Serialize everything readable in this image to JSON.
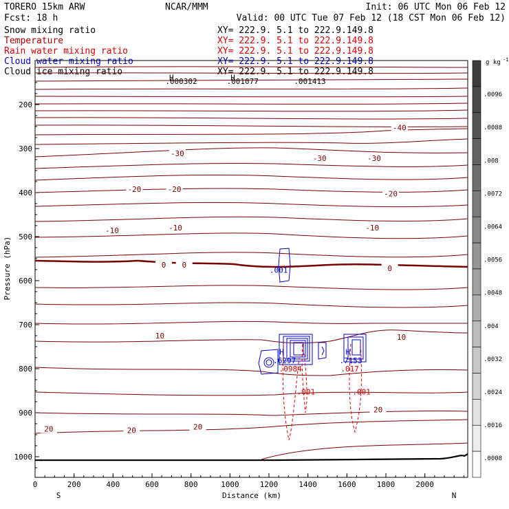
{
  "header": {
    "line1_left": "TORERO  15km ARW",
    "line1_center": "NCAR/MMM",
    "line1_right": "Init: 06 UTC Mon 06 Feb 12",
    "line2_left": "Fcst:   18 h",
    "line2_right": "Valid: 00 UTC Tue 07 Feb 12 (18 CST Mon 06 Feb 12)"
  },
  "legend": [
    {
      "name": "Snow mixing ratio",
      "xy": "XY= 222.9.   5.1 to 222.9.149.8",
      "color": "#000000"
    },
    {
      "name": "Temperature",
      "xy": "XY= 222.9.   5.1 to 222.9.149.8",
      "color": "#aa0000"
    },
    {
      "name": "Rain water mixing ratio",
      "xy": "XY= 222.9.   5.1 to 222.9.149.8",
      "color": "#dd0000"
    },
    {
      "name": "Cloud water mixing ratio",
      "xy": "XY= 222.9.   5.1 to 222.9.149.8",
      "color": "#0000cc"
    },
    {
      "name": "Cloud ice mixing ratio",
      "xy": "XY= 222.9.   5.1 to 222.9.149.8",
      "color": "#000000"
    }
  ],
  "chart_data": {
    "type": "contour",
    "xlabel": "Distance (km)",
    "ylabel": "Pressure (hPa)",
    "x_ticks": [
      0,
      200,
      400,
      600,
      800,
      1000,
      1200,
      1400,
      1600,
      1800,
      2000
    ],
    "x_end_labels": {
      "left": "S",
      "right": "N"
    },
    "xlim": [
      0,
      2220
    ],
    "y_ticks": [
      200,
      300,
      400,
      500,
      600,
      700,
      800,
      900,
      1000
    ],
    "ylim": [
      1050,
      100
    ],
    "temperature_contours": [
      {
        "label": "-40",
        "label_at": [
          [
            1870,
            252
          ]
        ]
      },
      {
        "label": "-30",
        "label_at": [
          [
            730,
            311
          ],
          [
            1460,
            322
          ],
          [
            1740,
            322
          ]
        ]
      },
      {
        "label": "-20",
        "label_at": [
          [
            510,
            392
          ],
          [
            715,
            392
          ],
          [
            1825,
            402
          ]
        ]
      },
      {
        "label": "-10",
        "label_at": [
          [
            395,
            486
          ],
          [
            720,
            480
          ],
          [
            1730,
            480
          ]
        ]
      },
      {
        "label": "0",
        "label_at": [
          [
            660,
            564
          ],
          [
            765,
            564
          ],
          [
            1820,
            572
          ]
        ]
      },
      {
        "label": "10",
        "label_at": [
          [
            640,
            725
          ],
          [
            1880,
            728
          ]
        ]
      },
      {
        "label": "20",
        "label_at": [
          [
            70,
            937
          ],
          [
            495,
            940
          ],
          [
            835,
            932
          ],
          [
            1760,
            893
          ]
        ]
      }
    ],
    "cloud_water_labels": [
      {
        "label": ".001",
        "x": 1250,
        "p": 576
      },
      {
        "label": "H",
        "x": 1265,
        "p": 762
      },
      {
        "label": ".6297",
        "x": 1280,
        "p": 781
      },
      {
        "label": "H",
        "x": 1605,
        "p": 762
      },
      {
        "label": ".7153",
        "x": 1620,
        "p": 781
      }
    ],
    "rain_water_labels": [
      {
        "label": ".0984",
        "x": 1310,
        "p": 800
      },
      {
        "label": ".017",
        "x": 1615,
        "p": 800
      },
      {
        "label": ".001",
        "x": 1390,
        "p": 852
      },
      {
        "label": ".001",
        "x": 1675,
        "p": 852
      }
    ],
    "ice_labels": [
      {
        "label": "H",
        "x": 700,
        "p": 138
      },
      {
        "label": ".000302",
        "x": 750,
        "p": 147
      },
      {
        "label": "H",
        "x": 1015,
        "p": 138
      },
      {
        "label": ".001077",
        "x": 1065,
        "p": 147
      },
      {
        "label": ".001413",
        "x": 1410,
        "p": 147
      }
    ],
    "colorbar": {
      "unit": "g kg",
      "unit_superscript": "-1",
      "labels": [
        ".0096",
        ".0088",
        ".008",
        ".0072",
        ".0064",
        ".0056",
        ".0048",
        ".004",
        ".0032",
        ".0024",
        ".0016",
        ".0008"
      ]
    }
  }
}
